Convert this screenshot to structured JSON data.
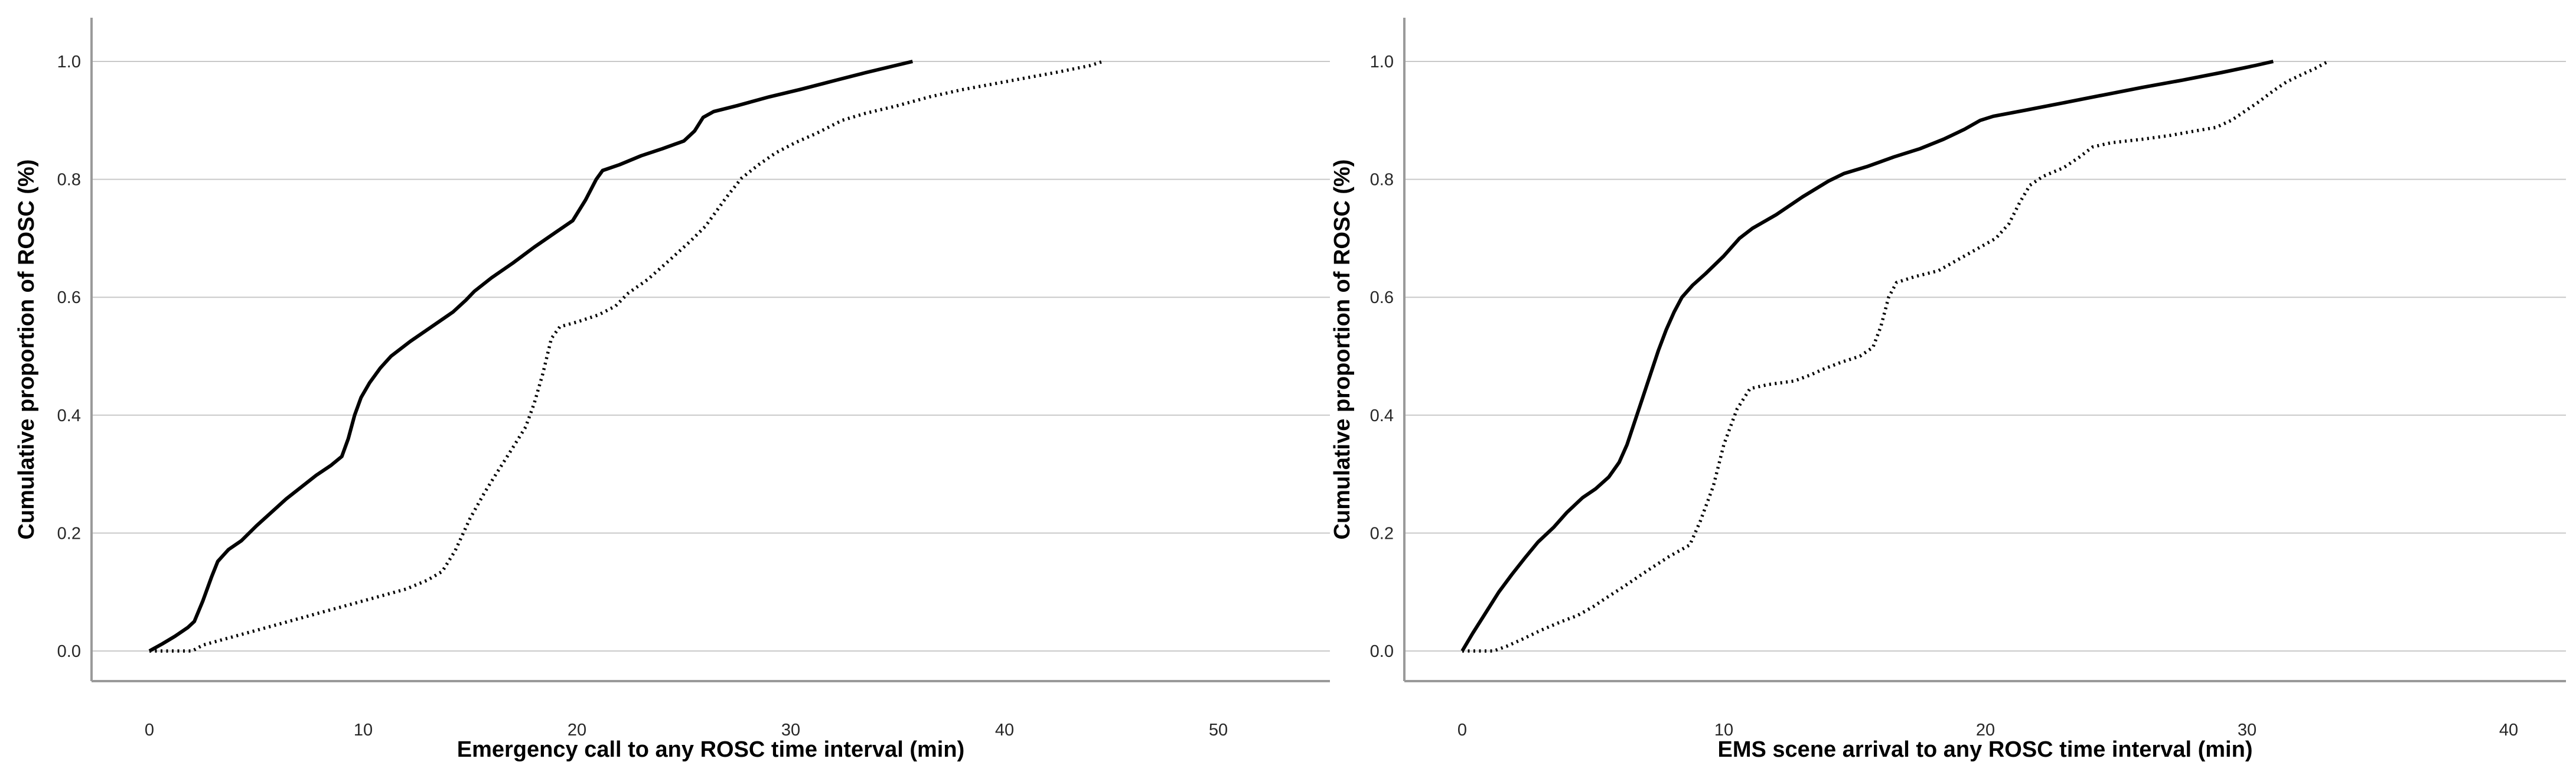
{
  "figure": {
    "background": "#ffffff",
    "description": "Two cumulative proportion curves of ROSC over time intervals"
  },
  "colors": {
    "curve": "#000000",
    "grid": "#c9c9c9",
    "axis": "#9a9a9a",
    "tick_label": "#262626",
    "title": "#000000"
  },
  "chart_data": [
    {
      "type": "line",
      "title": "",
      "xlabel": "Emergency call to any ROSC time interval (min)",
      "ylabel": "Cumulative proportion of ROSC (%)",
      "xlim": [
        -2.7,
        55.2
      ],
      "ylim": [
        -0.051,
        1.074
      ],
      "grid": "horizontal",
      "legend": "none",
      "x_ticks": {
        "labels": [
          "0",
          "10",
          "20",
          "30",
          "40",
          "50"
        ],
        "values": [
          0,
          10,
          20,
          30,
          40,
          50
        ]
      },
      "y_ticks": {
        "labels": [
          "0.0",
          "0.2",
          "0.4",
          "0.6",
          "0.8",
          "1.0"
        ],
        "values": [
          0,
          0.2,
          0.4,
          0.6,
          0.8,
          1.0
        ]
      },
      "series": [
        {
          "name": "solid-line-group",
          "style": "solid",
          "points": [
            [
              0,
              0
            ],
            [
              0.6,
              0.012
            ],
            [
              1.2,
              0.025
            ],
            [
              1.8,
              0.04
            ],
            [
              2.1,
              0.05
            ],
            [
              2.5,
              0.085
            ],
            [
              2.9,
              0.125
            ],
            [
              3.2,
              0.152
            ],
            [
              3.7,
              0.172
            ],
            [
              4.3,
              0.187
            ],
            [
              5,
              0.212
            ],
            [
              5.7,
              0.235
            ],
            [
              6.4,
              0.258
            ],
            [
              7.1,
              0.278
            ],
            [
              7.8,
              0.298
            ],
            [
              8.5,
              0.315
            ],
            [
              9,
              0.33
            ],
            [
              9.3,
              0.36
            ],
            [
              9.6,
              0.4
            ],
            [
              9.9,
              0.43
            ],
            [
              10.3,
              0.455
            ],
            [
              10.8,
              0.48
            ],
            [
              11.3,
              0.5
            ],
            [
              12.2,
              0.525
            ],
            [
              13.2,
              0.55
            ],
            [
              14.2,
              0.575
            ],
            [
              14.8,
              0.595
            ],
            [
              15.2,
              0.61
            ],
            [
              16,
              0.633
            ],
            [
              17,
              0.658
            ],
            [
              18,
              0.685
            ],
            [
              19,
              0.71
            ],
            [
              19.8,
              0.73
            ],
            [
              20.4,
              0.765
            ],
            [
              20.9,
              0.8
            ],
            [
              21.2,
              0.815
            ],
            [
              22,
              0.825
            ],
            [
              23,
              0.84
            ],
            [
              24,
              0.852
            ],
            [
              25,
              0.865
            ],
            [
              25.5,
              0.882
            ],
            [
              25.9,
              0.905
            ],
            [
              26.4,
              0.915
            ],
            [
              27.5,
              0.925
            ],
            [
              29,
              0.94
            ],
            [
              30.5,
              0.953
            ],
            [
              32,
              0.967
            ],
            [
              33.5,
              0.981
            ],
            [
              35,
              0.994
            ],
            [
              35.7,
              1.0
            ]
          ]
        },
        {
          "name": "dotted-line-group",
          "style": "dotted",
          "points": [
            [
              0,
              0
            ],
            [
              2,
              0
            ],
            [
              2.5,
              0.01
            ],
            [
              4,
              0.025
            ],
            [
              5,
              0.035
            ],
            [
              6,
              0.045
            ],
            [
              7,
              0.055
            ],
            [
              8,
              0.065
            ],
            [
              9,
              0.075
            ],
            [
              10,
              0.085
            ],
            [
              11,
              0.095
            ],
            [
              12,
              0.105
            ],
            [
              13,
              0.12
            ],
            [
              13.7,
              0.135
            ],
            [
              14.3,
              0.17
            ],
            [
              15,
              0.225
            ],
            [
              15.7,
              0.27
            ],
            [
              16.3,
              0.305
            ],
            [
              17,
              0.345
            ],
            [
              17.6,
              0.38
            ],
            [
              18,
              0.42
            ],
            [
              18.4,
              0.47
            ],
            [
              18.8,
              0.53
            ],
            [
              19.2,
              0.55
            ],
            [
              20,
              0.558
            ],
            [
              21,
              0.57
            ],
            [
              21.8,
              0.585
            ],
            [
              22.4,
              0.607
            ],
            [
              23.3,
              0.63
            ],
            [
              24.3,
              0.662
            ],
            [
              25.3,
              0.695
            ],
            [
              26,
              0.72
            ],
            [
              26.5,
              0.745
            ],
            [
              27,
              0.77
            ],
            [
              27.7,
              0.802
            ],
            [
              28.5,
              0.825
            ],
            [
              29.3,
              0.845
            ],
            [
              30.2,
              0.862
            ],
            [
              31.2,
              0.878
            ],
            [
              32.4,
              0.9
            ],
            [
              33.5,
              0.912
            ],
            [
              35,
              0.925
            ],
            [
              36.5,
              0.94
            ],
            [
              38,
              0.952
            ],
            [
              39.5,
              0.962
            ],
            [
              41,
              0.972
            ],
            [
              42.5,
              0.982
            ],
            [
              44,
              0.993
            ],
            [
              44.6,
              1.0
            ]
          ]
        }
      ]
    },
    {
      "type": "line",
      "title": "",
      "xlabel": "EMS scene arrival to any ROSC time interval (min)",
      "ylabel": "Cumulative proportion of ROSC (%)",
      "xlim": [
        -2.2,
        42.2
      ],
      "ylim": [
        -0.051,
        1.074
      ],
      "grid": "horizontal",
      "legend": "none",
      "x_ticks": {
        "labels": [
          "0",
          "10",
          "20",
          "30",
          "40"
        ],
        "values": [
          0,
          10,
          20,
          30,
          40
        ]
      },
      "y_ticks": {
        "labels": [
          "0.0",
          "0.2",
          "0.4",
          "0.6",
          "0.8",
          "1.0"
        ],
        "values": [
          0,
          0.2,
          0.4,
          0.6,
          0.8,
          1.0
        ]
      },
      "series": [
        {
          "name": "solid-line-group",
          "style": "solid",
          "points": [
            [
              0,
              0
            ],
            [
              0.4,
              0.03
            ],
            [
              0.9,
              0.065
            ],
            [
              1.4,
              0.1
            ],
            [
              1.9,
              0.13
            ],
            [
              2.4,
              0.158
            ],
            [
              2.9,
              0.185
            ],
            [
              3.5,
              0.21
            ],
            [
              4,
              0.235
            ],
            [
              4.6,
              0.26
            ],
            [
              5.1,
              0.275
            ],
            [
              5.6,
              0.295
            ],
            [
              6,
              0.32
            ],
            [
              6.3,
              0.35
            ],
            [
              6.6,
              0.39
            ],
            [
              6.9,
              0.43
            ],
            [
              7.2,
              0.47
            ],
            [
              7.5,
              0.51
            ],
            [
              7.8,
              0.545
            ],
            [
              8.1,
              0.575
            ],
            [
              8.4,
              0.6
            ],
            [
              8.8,
              0.62
            ],
            [
              9.3,
              0.64
            ],
            [
              10,
              0.67
            ],
            [
              10.6,
              0.7
            ],
            [
              11.1,
              0.717
            ],
            [
              12,
              0.74
            ],
            [
              13,
              0.77
            ],
            [
              14,
              0.797
            ],
            [
              14.6,
              0.81
            ],
            [
              15.5,
              0.822
            ],
            [
              16.5,
              0.838
            ],
            [
              17.5,
              0.852
            ],
            [
              18.4,
              0.868
            ],
            [
              19.2,
              0.885
            ],
            [
              19.8,
              0.9
            ],
            [
              20.3,
              0.907
            ],
            [
              21.5,
              0.917
            ],
            [
              23,
              0.93
            ],
            [
              24.5,
              0.943
            ],
            [
              26,
              0.956
            ],
            [
              27.5,
              0.968
            ],
            [
              29,
              0.981
            ],
            [
              30.3,
              0.993
            ],
            [
              31,
              1.0
            ]
          ]
        },
        {
          "name": "dotted-line-group",
          "style": "dotted",
          "points": [
            [
              0,
              0
            ],
            [
              1.2,
              0
            ],
            [
              1.7,
              0.008
            ],
            [
              2.3,
              0.02
            ],
            [
              3,
              0.035
            ],
            [
              3.8,
              0.05
            ],
            [
              4.4,
              0.06
            ],
            [
              5,
              0.075
            ],
            [
              5.4,
              0.087
            ],
            [
              6.2,
              0.11
            ],
            [
              7.1,
              0.137
            ],
            [
              7.9,
              0.16
            ],
            [
              8.7,
              0.18
            ],
            [
              9.1,
              0.22
            ],
            [
              9.6,
              0.28
            ],
            [
              10,
              0.35
            ],
            [
              10.5,
              0.41
            ],
            [
              11,
              0.445
            ],
            [
              11.7,
              0.452
            ],
            [
              12.7,
              0.458
            ],
            [
              13.3,
              0.468
            ],
            [
              13.8,
              0.478
            ],
            [
              14.5,
              0.49
            ],
            [
              15.2,
              0.5
            ],
            [
              15.7,
              0.515
            ],
            [
              16,
              0.55
            ],
            [
              16.3,
              0.6
            ],
            [
              16.6,
              0.625
            ],
            [
              17.3,
              0.635
            ],
            [
              18.2,
              0.645
            ],
            [
              19,
              0.665
            ],
            [
              19.8,
              0.685
            ],
            [
              20.4,
              0.7
            ],
            [
              20.9,
              0.725
            ],
            [
              21.3,
              0.76
            ],
            [
              21.7,
              0.79
            ],
            [
              22.2,
              0.805
            ],
            [
              23,
              0.82
            ],
            [
              23.6,
              0.838
            ],
            [
              24.1,
              0.855
            ],
            [
              24.8,
              0.862
            ],
            [
              26,
              0.868
            ],
            [
              27,
              0.874
            ],
            [
              28,
              0.882
            ],
            [
              28.8,
              0.888
            ],
            [
              29.4,
              0.9
            ],
            [
              29.9,
              0.915
            ],
            [
              30.4,
              0.93
            ],
            [
              31,
              0.95
            ],
            [
              31.5,
              0.965
            ],
            [
              32.1,
              0.978
            ],
            [
              32.6,
              0.988
            ],
            [
              33.1,
              1.0
            ]
          ]
        }
      ]
    }
  ]
}
